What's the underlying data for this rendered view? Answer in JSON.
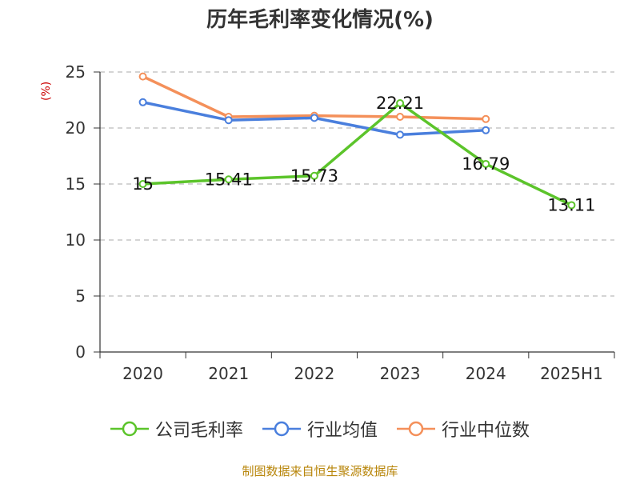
{
  "title": "历年毛利率变化情况(%)",
  "source": "制图数据来自恒生聚源数据库",
  "colors": {
    "company": "#5cc42b",
    "industry_avg": "#4a7fdd",
    "industry_median": "#f4905a",
    "grid": "#bbbbbb",
    "axis": "#333333",
    "ylabel": "#cc0000"
  },
  "chart_data": {
    "type": "line",
    "title": "历年毛利率变化情况(%)",
    "xlabel": "",
    "ylabel": "(%)",
    "categories": [
      "2020",
      "2021",
      "2022",
      "2023",
      "2024",
      "2025H1"
    ],
    "ylim": [
      0,
      25
    ],
    "yticks": [
      "0",
      "5",
      "10",
      "15",
      "20",
      "25"
    ],
    "grid": true,
    "legend_position": "bottom",
    "series": [
      {
        "name": "公司毛利率",
        "values": [
          15,
          15.41,
          15.73,
          22.21,
          16.79,
          13.11
        ],
        "labels": [
          "15",
          "15.41",
          "15.73",
          "22.21",
          "16.79",
          "13.11"
        ]
      },
      {
        "name": "行业均值",
        "values": [
          22.3,
          20.7,
          20.9,
          19.4,
          19.8,
          null
        ]
      },
      {
        "name": "行业中位数",
        "values": [
          24.6,
          21.0,
          21.1,
          21.0,
          20.8,
          null
        ]
      }
    ]
  }
}
